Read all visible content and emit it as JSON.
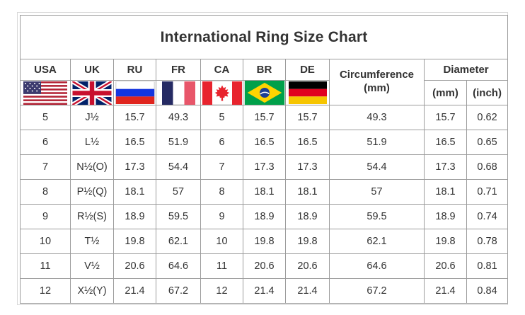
{
  "title": "International Ring Size Chart",
  "header": {
    "countries": [
      {
        "label": "USA",
        "flag": "usa-flag"
      },
      {
        "label": "UK",
        "flag": "uk-flag"
      },
      {
        "label": "RU",
        "flag": "russia-flag"
      },
      {
        "label": "FR",
        "flag": "france-flag"
      },
      {
        "label": "CA",
        "flag": "canada-flag"
      },
      {
        "label": "BR",
        "flag": "brazil-flag"
      },
      {
        "label": "DE",
        "flag": "germany-flag"
      }
    ],
    "circumference_line1": "Circumference",
    "circumference_line2": "(mm)",
    "diameter_label": "Diameter",
    "diameter_mm_label": "(mm)",
    "diameter_inch_label": "(inch)"
  },
  "colors": {
    "background": "#ffffff",
    "grid_border": "#9c9c9c",
    "outer_frame": "#d8d8d8",
    "text": "#333333"
  },
  "chart_data": {
    "type": "table",
    "title": "International Ring Size Chart",
    "columns": [
      "USA",
      "UK",
      "RU",
      "FR",
      "CA",
      "BR",
      "DE",
      "Circumference (mm)",
      "Diameter (mm)",
      "Diameter (inch)"
    ],
    "rows": [
      [
        "5",
        "J½",
        "15.7",
        "49.3",
        "5",
        "15.7",
        "15.7",
        "49.3",
        "15.7",
        "0.62"
      ],
      [
        "6",
        "L½",
        "16.5",
        "51.9",
        "6",
        "16.5",
        "16.5",
        "51.9",
        "16.5",
        "0.65"
      ],
      [
        "7",
        "N½(O)",
        "17.3",
        "54.4",
        "7",
        "17.3",
        "17.3",
        "54.4",
        "17.3",
        "0.68"
      ],
      [
        "8",
        "P½(Q)",
        "18.1",
        "57",
        "8",
        "18.1",
        "18.1",
        "57",
        "18.1",
        "0.71"
      ],
      [
        "9",
        "R½(S)",
        "18.9",
        "59.5",
        "9",
        "18.9",
        "18.9",
        "59.5",
        "18.9",
        "0.74"
      ],
      [
        "10",
        "T½",
        "19.8",
        "62.1",
        "10",
        "19.8",
        "19.8",
        "62.1",
        "19.8",
        "0.78"
      ],
      [
        "11",
        "V½",
        "20.6",
        "64.6",
        "11",
        "20.6",
        "20.6",
        "64.6",
        "20.6",
        "0.81"
      ],
      [
        "12",
        "X½(Y)",
        "21.4",
        "67.2",
        "12",
        "21.4",
        "21.4",
        "67.2",
        "21.4",
        "0.84"
      ]
    ]
  }
}
